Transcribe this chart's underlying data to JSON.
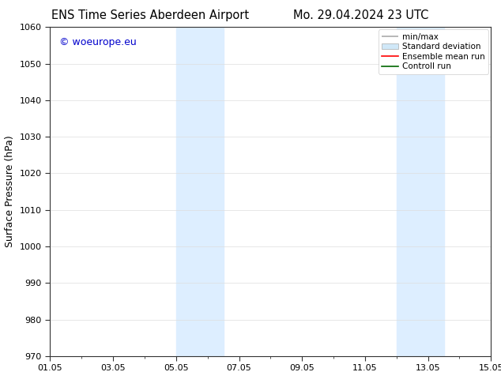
{
  "title_left": "ENS Time Series Aberdeen Airport",
  "title_right": "Mo. 29.04.2024 23 UTC",
  "ylabel": "Surface Pressure (hPa)",
  "ylim": [
    970,
    1060
  ],
  "yticks": [
    970,
    980,
    990,
    1000,
    1010,
    1020,
    1030,
    1040,
    1050,
    1060
  ],
  "xlim_start": 0,
  "xlim_end": 14,
  "xtick_labels": [
    "01.05",
    "03.05",
    "05.05",
    "07.05",
    "09.05",
    "11.05",
    "13.05",
    "15.05"
  ],
  "xtick_positions": [
    0,
    2,
    4,
    6,
    8,
    10,
    12,
    14
  ],
  "shaded_bands": [
    {
      "x_start": 4.0,
      "x_end": 5.5,
      "color": "#ddeeff"
    },
    {
      "x_start": 11.0,
      "x_end": 12.5,
      "color": "#ddeeff"
    }
  ],
  "watermark_text": "© woeurope.eu",
  "watermark_color": "#0000cc",
  "legend_entries": [
    {
      "label": "min/max"
    },
    {
      "label": "Standard deviation"
    },
    {
      "label": "Ensemble mean run"
    },
    {
      "label": "Controll run"
    }
  ],
  "bg_color": "#ffffff",
  "tick_color": "#000000",
  "font_size_title": 10.5,
  "font_size_axis": 9,
  "font_size_tick": 8,
  "font_size_legend": 7.5,
  "font_size_watermark": 9
}
